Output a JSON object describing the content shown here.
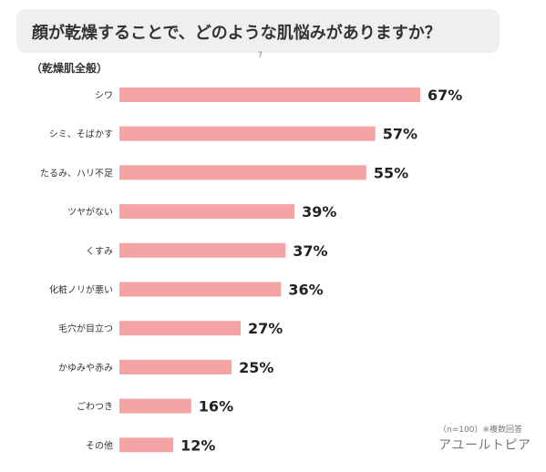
{
  "title": "顔が乾燥することで、どのような肌悩みがありますか？",
  "subtitle": "（乾燥肌全般）",
  "stray_mark": "?",
  "footnote": "（n=100）※複数回答",
  "brand": "アユールトピア",
  "colors": {
    "bar": "#f4a4a5",
    "title_bg": "#efefef"
  },
  "chart_data": {
    "type": "bar",
    "orientation": "horizontal",
    "title": "顔が乾燥することで、どのような肌悩みがありますか？",
    "subtitle": "（乾燥肌全般）",
    "categories": [
      "シワ",
      "シミ、そばかす",
      "たるみ、ハリ不足",
      "ツヤがない",
      "くすみ",
      "化粧ノリが悪い",
      "毛穴が目立つ",
      "かゆみや赤み",
      "ごわつき",
      "その他"
    ],
    "values": [
      67,
      57,
      55,
      39,
      37,
      36,
      27,
      25,
      16,
      12
    ],
    "value_labels": [
      "67%",
      "57%",
      "55%",
      "39%",
      "37%",
      "36%",
      "27%",
      "25%",
      "16%",
      "12%"
    ],
    "unit": "%",
    "xlim": [
      0,
      100
    ],
    "grid": false,
    "legend": "none"
  }
}
